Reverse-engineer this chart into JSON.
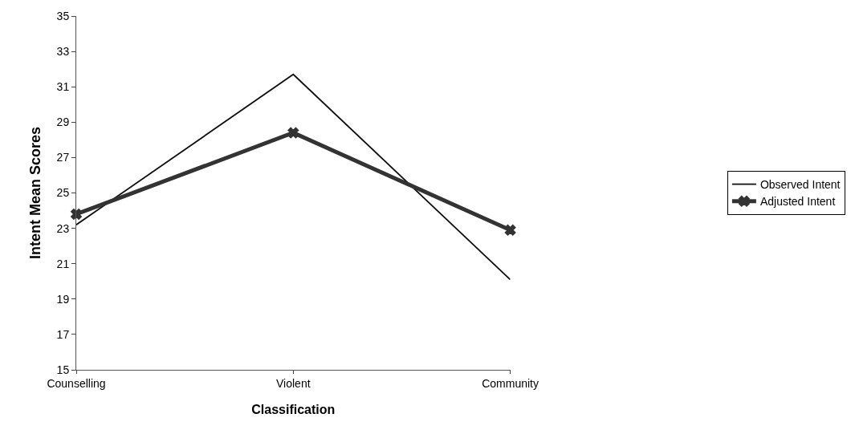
{
  "chart_data": {
    "type": "line",
    "xlabel": "Classification",
    "ylabel": "Intent Mean Scores",
    "categories": [
      "Counselling",
      "Violent",
      "Community"
    ],
    "series": [
      {
        "name": "Observed Intent",
        "color": "#111111",
        "values": [
          23.2,
          31.7,
          20.1
        ],
        "marker": "none"
      },
      {
        "name": "Adjusted Intent",
        "color": "#333333",
        "values": [
          23.8,
          28.4,
          22.9
        ],
        "marker": "cross"
      }
    ],
    "ylim": [
      15,
      35
    ],
    "yticks": [
      15,
      17,
      19,
      21,
      23,
      25,
      27,
      29,
      31,
      33,
      35
    ],
    "legend": "right",
    "line_style": "solid"
  }
}
